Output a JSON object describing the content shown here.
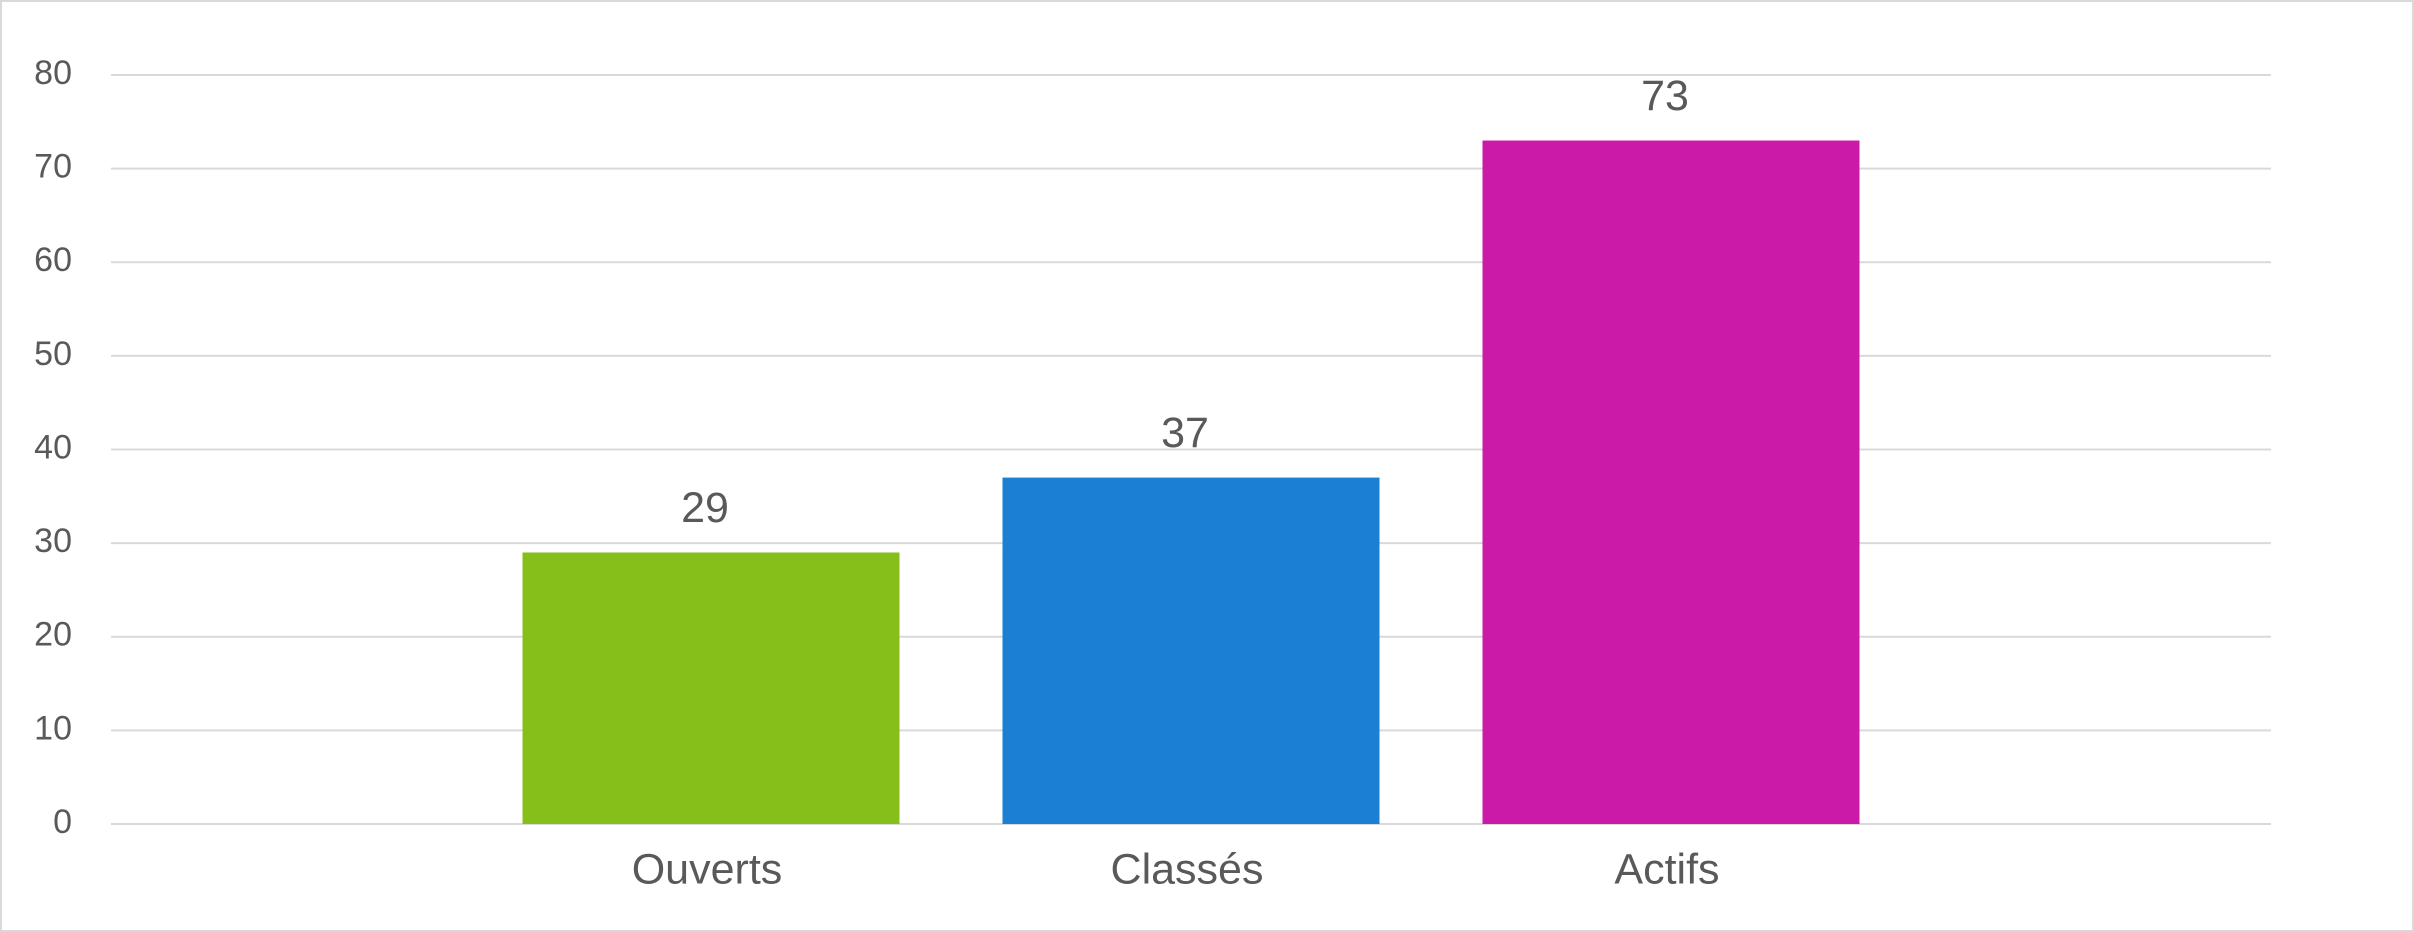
{
  "chart_data": {
    "type": "bar",
    "categories": [
      "Ouverts",
      "Classés",
      "Actifs"
    ],
    "values": [
      29,
      37,
      73
    ],
    "colors": [
      "#86bf1a",
      "#1b80d4",
      "#cb19a8"
    ],
    "ylim": [
      0,
      80
    ],
    "yticks": [
      0,
      10,
      20,
      30,
      40,
      50,
      60,
      70,
      80
    ],
    "grid": true
  }
}
